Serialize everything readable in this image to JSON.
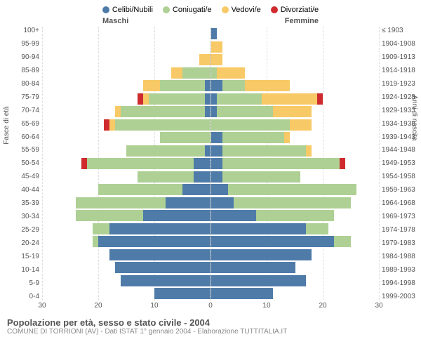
{
  "legend": {
    "items": [
      {
        "label": "Celibi/Nubili",
        "color": "#4f7ba9"
      },
      {
        "label": "Coniugati/e",
        "color": "#aed094"
      },
      {
        "label": "Vedovi/e",
        "color": "#f8c967"
      },
      {
        "label": "Divorziati/e",
        "color": "#cf2b2e"
      }
    ]
  },
  "gender_labels": {
    "male": "Maschi",
    "female": "Femmine"
  },
  "y_left_title": "Fasce di età",
  "y_right_title": "Anni di nascita",
  "x_axis": {
    "max": 30,
    "ticks": [
      30,
      20,
      10,
      0,
      10,
      20,
      30
    ]
  },
  "age_groups": [
    "100+",
    "95-99",
    "90-94",
    "85-89",
    "80-84",
    "75-79",
    "70-74",
    "65-69",
    "60-64",
    "55-59",
    "50-54",
    "45-49",
    "40-44",
    "35-39",
    "30-34",
    "25-29",
    "20-24",
    "15-19",
    "10-14",
    "5-9",
    "0-4"
  ],
  "birth_years": [
    "≤ 1903",
    "1904-1908",
    "1909-1913",
    "1914-1918",
    "1919-1923",
    "1924-1928",
    "1929-1933",
    "1934-1938",
    "1939-1943",
    "1944-1948",
    "1949-1953",
    "1954-1958",
    "1959-1963",
    "1964-1968",
    "1969-1973",
    "1974-1978",
    "1979-1983",
    "1984-1988",
    "1989-1993",
    "1994-1998",
    "1999-2003"
  ],
  "data": {
    "male": [
      {
        "s": 0,
        "m": 0,
        "w": 0,
        "d": 0
      },
      {
        "s": 0,
        "m": 0,
        "w": 0,
        "d": 0
      },
      {
        "s": 0,
        "m": 0,
        "w": 2,
        "d": 0
      },
      {
        "s": 0,
        "m": 5,
        "w": 2,
        "d": 0
      },
      {
        "s": 1,
        "m": 8,
        "w": 3,
        "d": 0
      },
      {
        "s": 1,
        "m": 10,
        "w": 1,
        "d": 1
      },
      {
        "s": 1,
        "m": 15,
        "w": 1,
        "d": 0
      },
      {
        "s": 0,
        "m": 17,
        "w": 1,
        "d": 1
      },
      {
        "s": 0,
        "m": 9,
        "w": 0,
        "d": 0
      },
      {
        "s": 1,
        "m": 14,
        "w": 0,
        "d": 0
      },
      {
        "s": 3,
        "m": 19,
        "w": 0,
        "d": 1
      },
      {
        "s": 3,
        "m": 10,
        "w": 0,
        "d": 0
      },
      {
        "s": 5,
        "m": 15,
        "w": 0,
        "d": 0
      },
      {
        "s": 8,
        "m": 16,
        "w": 0,
        "d": 0
      },
      {
        "s": 12,
        "m": 12,
        "w": 0,
        "d": 0
      },
      {
        "s": 18,
        "m": 3,
        "w": 0,
        "d": 0
      },
      {
        "s": 20,
        "m": 1,
        "w": 0,
        "d": 0
      },
      {
        "s": 18,
        "m": 0,
        "w": 0,
        "d": 0
      },
      {
        "s": 17,
        "m": 0,
        "w": 0,
        "d": 0
      },
      {
        "s": 16,
        "m": 0,
        "w": 0,
        "d": 0
      },
      {
        "s": 10,
        "m": 0,
        "w": 0,
        "d": 0
      }
    ],
    "female": [
      {
        "s": 1,
        "m": 0,
        "w": 0,
        "d": 0
      },
      {
        "s": 0,
        "m": 0,
        "w": 2,
        "d": 0
      },
      {
        "s": 0,
        "m": 0,
        "w": 2,
        "d": 0
      },
      {
        "s": 0,
        "m": 1,
        "w": 5,
        "d": 0
      },
      {
        "s": 2,
        "m": 4,
        "w": 8,
        "d": 0
      },
      {
        "s": 1,
        "m": 8,
        "w": 10,
        "d": 1
      },
      {
        "s": 1,
        "m": 10,
        "w": 7,
        "d": 0
      },
      {
        "s": 0,
        "m": 14,
        "w": 4,
        "d": 0
      },
      {
        "s": 2,
        "m": 11,
        "w": 1,
        "d": 0
      },
      {
        "s": 2,
        "m": 15,
        "w": 1,
        "d": 0
      },
      {
        "s": 2,
        "m": 21,
        "w": 0,
        "d": 1
      },
      {
        "s": 2,
        "m": 14,
        "w": 0,
        "d": 0
      },
      {
        "s": 3,
        "m": 23,
        "w": 0,
        "d": 0
      },
      {
        "s": 4,
        "m": 21,
        "w": 0,
        "d": 0
      },
      {
        "s": 8,
        "m": 14,
        "w": 0,
        "d": 0
      },
      {
        "s": 17,
        "m": 4,
        "w": 0,
        "d": 0
      },
      {
        "s": 22,
        "m": 3,
        "w": 0,
        "d": 0
      },
      {
        "s": 18,
        "m": 0,
        "w": 0,
        "d": 0
      },
      {
        "s": 15,
        "m": 0,
        "w": 0,
        "d": 0
      },
      {
        "s": 17,
        "m": 0,
        "w": 0,
        "d": 0
      },
      {
        "s": 11,
        "m": 0,
        "w": 0,
        "d": 0
      }
    ]
  },
  "colors": {
    "single": "#4f7ba9",
    "married": "#aed094",
    "widowed": "#f8c967",
    "divorced": "#cf2b2e",
    "grid": "#dddddd",
    "axis_text": "#555555",
    "bg": "#ffffff"
  },
  "footer": {
    "title": "Popolazione per età, sesso e stato civile - 2004",
    "subtitle": "COMUNE DI TORRIONI (AV) - Dati ISTAT 1° gennaio 2004 - Elaborazione TUTTITALIA.IT"
  }
}
